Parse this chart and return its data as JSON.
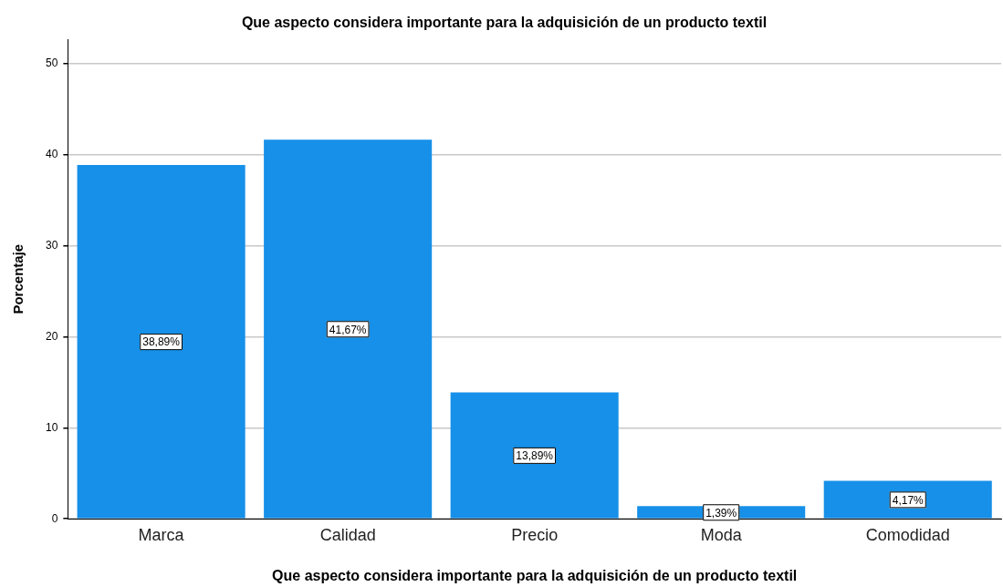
{
  "chart_data": {
    "type": "bar",
    "title": "Que aspecto considera importante para la adquisición de un producto textil",
    "xlabel": "Que aspecto considera importante para la adquisición de un producto textil",
    "ylabel": "Porcentaje",
    "categories": [
      "Marca",
      "Calidad",
      "Precio",
      "Moda",
      "Comodidad"
    ],
    "values": [
      38.89,
      41.67,
      13.89,
      1.39,
      4.17
    ],
    "value_labels": [
      "38,89%",
      "41,67%",
      "13,89%",
      "1,39%",
      "4,17%"
    ],
    "color": "#1690e8",
    "ylim": [
      0,
      52.7
    ],
    "yticks": [
      0,
      10,
      20,
      30,
      40,
      50
    ],
    "grid": "y",
    "legend": false
  }
}
